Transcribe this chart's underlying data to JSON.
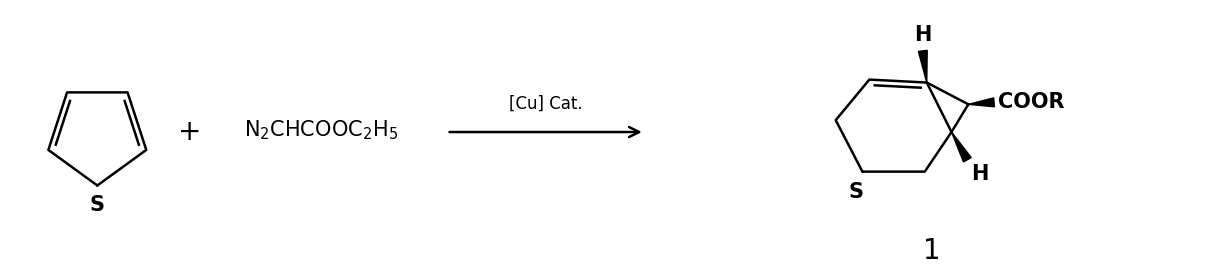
{
  "background_color": "#ffffff",
  "figure_width": 12.26,
  "figure_height": 2.72,
  "dpi": 100,
  "plus_text": "+",
  "arrow_label": "[Cu] Cat.",
  "compound_label": "1",
  "coor_label": "COOR",
  "H_top": "H",
  "H_bottom": "H",
  "S_thiophene": "S",
  "S_product": "S",
  "lw": 1.8,
  "black": "#000000"
}
